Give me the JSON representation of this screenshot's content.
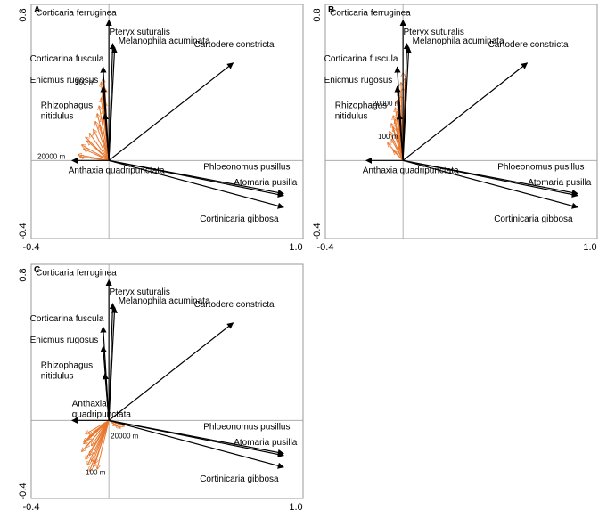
{
  "chart_data": [
    {
      "type": "biplot",
      "panel_label": "A",
      "xlim": [
        -0.4,
        1.0
      ],
      "ylim": [
        -0.4,
        0.8
      ],
      "x_tick_labels": [
        "-0.4",
        "1.0"
      ],
      "y_tick_labels": [
        "0.8",
        "-0.4"
      ],
      "species_arrows": [
        {
          "name": "Corticaria ferruginea",
          "x": 0.0,
          "y": 0.72
        },
        {
          "name": "Pteryx suturalis",
          "x": 0.02,
          "y": 0.6
        },
        {
          "name": "Melanophila acuminata",
          "x": 0.03,
          "y": 0.58
        },
        {
          "name": "Cartodere constricta",
          "x": 0.64,
          "y": 0.5
        },
        {
          "name": "Corticarina fuscula",
          "x": -0.03,
          "y": 0.48
        },
        {
          "name": "Enicmus rugosus",
          "x": -0.03,
          "y": 0.38
        },
        {
          "name": "Rhizophagus nitidulus",
          "x": -0.02,
          "y": 0.24
        },
        {
          "name": "Anthaxia quadripunctata",
          "x": -0.19,
          "y": 0.0
        },
        {
          "name": "Phloeonomus pusillus",
          "x": 0.9,
          "y": -0.17
        },
        {
          "name": "Atomaria pusilla",
          "x": 0.9,
          "y": -0.18
        },
        {
          "name": "Cortinicaria gibbosa",
          "x": 0.9,
          "y": -0.24
        }
      ],
      "distance_labels": [
        "100 m",
        "20000 m"
      ],
      "distance_arrows": [
        {
          "x": -0.03,
          "y": 0.42
        },
        {
          "x": -0.04,
          "y": 0.4
        },
        {
          "x": -0.02,
          "y": 0.37
        },
        {
          "x": -0.03,
          "y": 0.34
        },
        {
          "x": -0.04,
          "y": 0.32
        },
        {
          "x": -0.02,
          "y": 0.3
        },
        {
          "x": -0.05,
          "y": 0.28
        },
        {
          "x": -0.03,
          "y": 0.26
        },
        {
          "x": -0.06,
          "y": 0.24
        },
        {
          "x": -0.04,
          "y": 0.22
        },
        {
          "x": -0.07,
          "y": 0.2
        },
        {
          "x": -0.05,
          "y": 0.18
        },
        {
          "x": -0.08,
          "y": 0.16
        },
        {
          "x": -0.1,
          "y": 0.14
        },
        {
          "x": -0.12,
          "y": 0.12
        },
        {
          "x": -0.11,
          "y": 0.1
        },
        {
          "x": -0.14,
          "y": 0.08
        },
        {
          "x": -0.13,
          "y": 0.06
        },
        {
          "x": -0.16,
          "y": 0.03
        },
        {
          "x": -0.15,
          "y": 0.02
        }
      ]
    },
    {
      "type": "biplot",
      "panel_label": "B",
      "xlim": [
        -0.4,
        1.0
      ],
      "ylim": [
        -0.4,
        0.8
      ],
      "x_tick_labels": [
        "-0.4",
        "1.0"
      ],
      "y_tick_labels": [
        "0.8",
        "-0.4"
      ],
      "species_arrows": [
        {
          "name": "Corticaria ferruginea",
          "x": 0.0,
          "y": 0.72
        },
        {
          "name": "Pteryx suturalis",
          "x": 0.02,
          "y": 0.6
        },
        {
          "name": "Melanophila acuminata",
          "x": 0.03,
          "y": 0.58
        },
        {
          "name": "Cartodere constricta",
          "x": 0.64,
          "y": 0.5
        },
        {
          "name": "Corticarina fuscula",
          "x": -0.03,
          "y": 0.48
        },
        {
          "name": "Enicmus rugosus",
          "x": -0.03,
          "y": 0.38
        },
        {
          "name": "Rhizophagus nitidulus",
          "x": -0.02,
          "y": 0.24
        },
        {
          "name": "Anthaxia quadripunctata",
          "x": -0.19,
          "y": 0.0
        },
        {
          "name": "Phloeonomus pusillus",
          "x": 0.9,
          "y": -0.17
        },
        {
          "name": "Atomaria pusilla",
          "x": 0.9,
          "y": -0.18
        },
        {
          "name": "Cortinicaria gibbosa",
          "x": 0.9,
          "y": -0.24
        }
      ],
      "distance_labels": [
        "20000 m",
        "100 m"
      ],
      "distance_arrows": [
        {
          "x": 0.0,
          "y": 0.45
        },
        {
          "x": 0.01,
          "y": 0.42
        },
        {
          "x": -0.01,
          "y": 0.4
        },
        {
          "x": 0.0,
          "y": 0.37
        },
        {
          "x": -0.02,
          "y": 0.35
        },
        {
          "x": -0.01,
          "y": 0.33
        },
        {
          "x": -0.03,
          "y": 0.31
        },
        {
          "x": -0.02,
          "y": 0.29
        },
        {
          "x": -0.04,
          "y": 0.27
        },
        {
          "x": -0.03,
          "y": 0.25
        },
        {
          "x": -0.05,
          "y": 0.23
        },
        {
          "x": -0.04,
          "y": 0.21
        },
        {
          "x": -0.06,
          "y": 0.19
        },
        {
          "x": -0.05,
          "y": 0.17
        },
        {
          "x": -0.07,
          "y": 0.15
        },
        {
          "x": -0.03,
          "y": 0.13
        },
        {
          "x": -0.06,
          "y": 0.11
        },
        {
          "x": -0.08,
          "y": 0.09
        },
        {
          "x": -0.02,
          "y": 0.07
        },
        {
          "x": -0.05,
          "y": 0.05
        }
      ]
    },
    {
      "type": "biplot",
      "panel_label": "C",
      "xlim": [
        -0.4,
        1.0
      ],
      "ylim": [
        -0.4,
        0.8
      ],
      "x_tick_labels": [
        "-0.4",
        "1.0"
      ],
      "y_tick_labels": [
        "0.8",
        "-0.4"
      ],
      "species_arrows": [
        {
          "name": "Corticaria ferruginea",
          "x": 0.0,
          "y": 0.72
        },
        {
          "name": "Pteryx suturalis",
          "x": 0.02,
          "y": 0.6
        },
        {
          "name": "Melanophila acuminata",
          "x": 0.03,
          "y": 0.58
        },
        {
          "name": "Cartodere constricta",
          "x": 0.64,
          "y": 0.5
        },
        {
          "name": "Corticarina fuscula",
          "x": -0.03,
          "y": 0.48
        },
        {
          "name": "Enicmus rugosus",
          "x": -0.03,
          "y": 0.38
        },
        {
          "name": "Rhizophagus nitidulus",
          "x": -0.02,
          "y": 0.24
        },
        {
          "name": "Anthaxia quadripunctata",
          "x": -0.19,
          "y": 0.0
        },
        {
          "name": "Phloeonomus pusillus",
          "x": 0.9,
          "y": -0.17
        },
        {
          "name": "Atomaria pusilla",
          "x": 0.9,
          "y": -0.18
        },
        {
          "name": "Cortinicaria gibbosa",
          "x": 0.9,
          "y": -0.24
        }
      ],
      "distance_labels": [
        "20000 m",
        "100 m"
      ],
      "distance_arrows": [
        {
          "x": 0.08,
          "y": -0.03
        },
        {
          "x": 0.06,
          "y": -0.04
        },
        {
          "x": 0.04,
          "y": -0.03
        },
        {
          "x": -0.08,
          "y": -0.06
        },
        {
          "x": -0.1,
          "y": -0.08
        },
        {
          "x": -0.12,
          "y": -0.07
        },
        {
          "x": -0.11,
          "y": -0.1
        },
        {
          "x": -0.13,
          "y": -0.12
        },
        {
          "x": -0.12,
          "y": -0.14
        },
        {
          "x": -0.14,
          "y": -0.16
        },
        {
          "x": -0.1,
          "y": -0.18
        },
        {
          "x": -0.12,
          "y": -0.2
        },
        {
          "x": -0.09,
          "y": -0.21
        },
        {
          "x": -0.11,
          "y": -0.23
        },
        {
          "x": -0.08,
          "y": -0.24
        },
        {
          "x": -0.06,
          "y": -0.25
        },
        {
          "x": -0.1,
          "y": -0.26
        },
        {
          "x": -0.07,
          "y": -0.22
        },
        {
          "x": -0.13,
          "y": -0.11
        },
        {
          "x": -0.09,
          "y": -0.13
        }
      ]
    }
  ],
  "colors": {
    "species_arrow": "#000000",
    "distance_arrow": "#e8772e",
    "frame": "#999999",
    "zero_line": "#a0a0a0"
  }
}
